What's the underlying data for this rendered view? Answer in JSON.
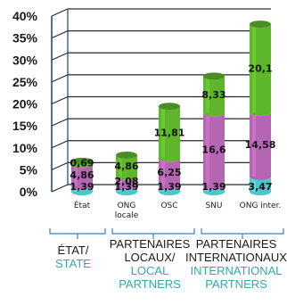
{
  "chart_data": {
    "type": "bar",
    "stacked": true,
    "categories": [
      "État",
      "ONG locale",
      "OSC",
      "SNU",
      "ONG inter."
    ],
    "category_lines": [
      [
        "État"
      ],
      [
        "ONG",
        "locale"
      ],
      [
        "OSC"
      ],
      [
        "SNU"
      ],
      [
        "ONG inter."
      ]
    ],
    "series": [
      {
        "values": [
          1.39,
          1.39,
          1.39,
          1.39,
          3.47
        ],
        "color": "#4fc6c8",
        "labels": [
          "1,39",
          "1,39",
          "1,39",
          "1,39",
          "3,47"
        ]
      },
      {
        "values": [
          4.86,
          2.08,
          6.25,
          16.6,
          14.58
        ],
        "color": "#b566b3",
        "labels": [
          "4,86",
          "2,08",
          "6,25",
          "16,6",
          "14,58"
        ]
      },
      {
        "values": [
          0.69,
          4.86,
          11.81,
          8.33,
          20.1
        ],
        "color": "#5fb52c",
        "labels": [
          "0,69",
          "4,86",
          "11,81",
          "8,33",
          "20,1"
        ]
      }
    ],
    "y_ticks": [
      "0%",
      "5%",
      "10%",
      "15%",
      "20%",
      "25%",
      "30%",
      "35%",
      "40%"
    ],
    "ylim": [
      0,
      40
    ],
    "grid": true
  },
  "groups": [
    {
      "fr": "ÉTAT/",
      "en": "STATE"
    },
    {
      "fr": "PARTENAIRES LOCAUX/",
      "en": "LOCAL PARTNERS"
    },
    {
      "fr": "PARTENAIRES INTERNATIONAUX/",
      "en": "INTERNATIONAL PARTNERS"
    }
  ],
  "colors": {
    "axis": "#1f3f7a",
    "grid": "#2a2a2a",
    "bracket": "#3b7fc4",
    "state_en": "#3aa6a6"
  }
}
